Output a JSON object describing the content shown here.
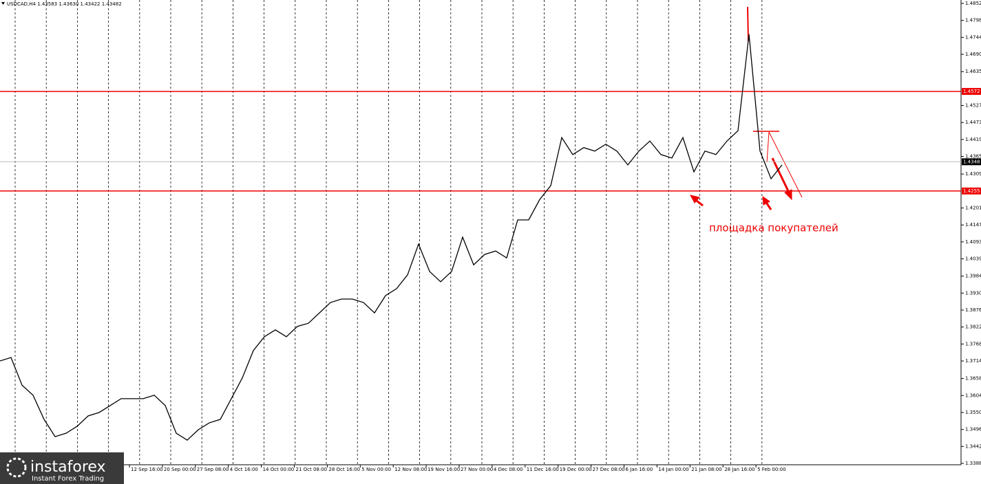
{
  "chart_data": {
    "type": "line",
    "title": "USDCAD,H4  1.43583 1.43630 1.43422 1.43482",
    "annotation": "площадка покупателей",
    "logo": {
      "name": "instaforex",
      "tagline": "Instant Forex Trading"
    },
    "x_labels": [
      "12 Sep 16:00",
      "20 Sep 00:00",
      "27 Sep 08:00",
      "4 Oct 16:00",
      "14 Oct 00:00",
      "21 Oct 08:00",
      "28 Oct 16:00",
      "5 Nov 00:00",
      "12 Nov 08:00",
      "19 Nov 16:00",
      "27 Nov 00:00",
      "4 Dec 08:00",
      "11 Dec 16:00",
      "19 Dec 00:00",
      "27 Dec 08:00",
      "6 Jan 16:00",
      "14 Jan 00:00",
      "21 Jan 08:00",
      "28 Jan 16:00",
      "5 Feb 00:00"
    ],
    "series": [
      {
        "name": "USDCAD",
        "color": "#000000",
        "values": [
          1.3714,
          1.3725,
          1.3637,
          1.3605,
          1.3528,
          1.3473,
          1.3484,
          1.3506,
          1.3539,
          1.355,
          1.3572,
          1.3594,
          1.3594,
          1.3594,
          1.3605,
          1.3572,
          1.3484,
          1.3462,
          1.3495,
          1.3517,
          1.3528,
          1.3594,
          1.366,
          1.3747,
          1.3791,
          1.3813,
          1.3791,
          1.3824,
          1.3834,
          1.3867,
          1.39,
          1.3911,
          1.3911,
          1.39,
          1.3867,
          1.3922,
          1.3944,
          1.3988,
          1.4086,
          1.3999,
          1.3966,
          1.3999,
          1.4108,
          1.402,
          1.4053,
          1.4064,
          1.4042,
          1.4163,
          1.4163,
          1.4228,
          1.4272,
          1.4425,
          1.4371,
          1.4393,
          1.4382,
          1.4404,
          1.4382,
          1.4338,
          1.4382,
          1.4414,
          1.4371,
          1.436,
          1.4425,
          1.4316,
          1.4382,
          1.4371,
          1.4414,
          1.4447,
          1.4754,
          1.4382,
          1.4294,
          1.4338
        ]
      }
    ],
    "levels": [
      1.4572,
      1.4255
    ],
    "current_price": 1.4348,
    "ylim": [
      1.3388,
      1.4852
    ],
    "yticks": [
      1.4852,
      1.4798,
      1.4744,
      {
        "value": 1.469,
        "label": "1.4690"
      },
      1.4635,
      1.4527,
      1.4473,
      1.4419,
      1.4365,
      1.4309,
      1.4201,
      1.4147,
      1.4093,
      1.4039,
      1.3984,
      {
        "value": 1.393,
        "label": "1.3930"
      },
      1.3876,
      1.3822,
      1.3768,
      1.3714,
      1.3658,
      1.3604,
      {
        "value": 1.355,
        "label": "1.3550"
      },
      1.3496,
      1.3442,
      1.3388
    ]
  }
}
